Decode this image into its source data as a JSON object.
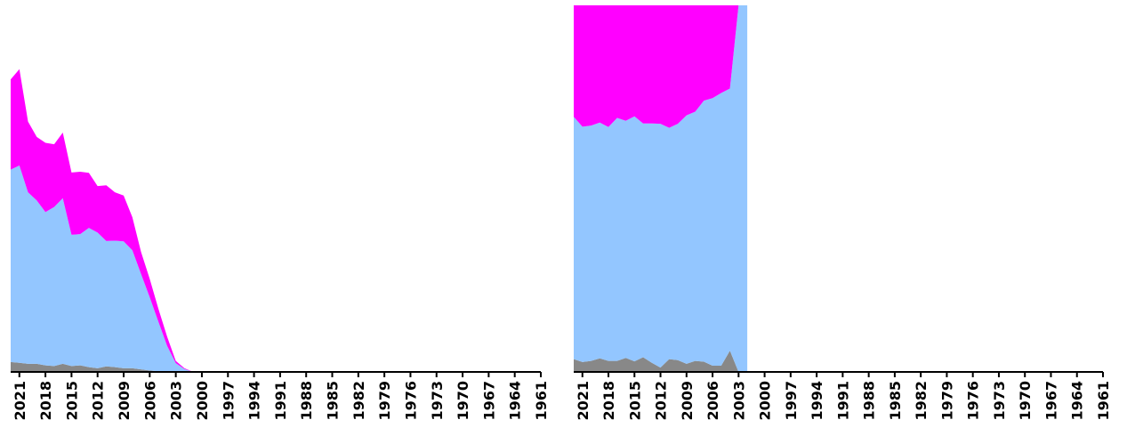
{
  "colors": {
    "grey": "#888888",
    "blue": "#93c6ff",
    "magenta": "#ff00ff",
    "axis": "#000000",
    "background": "#ffffff"
  },
  "chart_data": [
    {
      "type": "area",
      "stacked": true,
      "x_axis_reversed": true,
      "x_tick_labels": [
        "2021",
        "2018",
        "2015",
        "2012",
        "2009",
        "2006",
        "2003",
        "2000",
        "1997",
        "1994",
        "1991",
        "1988",
        "1985",
        "1982",
        "1979",
        "1976",
        "1973",
        "1970",
        "1967",
        "1964",
        "1961"
      ],
      "xlim": [
        2022,
        1961
      ],
      "ylim": [
        0,
        1.0
      ],
      "x": [
        2022,
        2021,
        2020,
        2019,
        2018,
        2017,
        2016,
        2015,
        2014,
        2013,
        2012,
        2011,
        2010,
        2009,
        2008,
        2007,
        2006,
        2005,
        2004,
        2003,
        2002,
        2001
      ],
      "series": [
        {
          "color": "#888888",
          "values": [
            0.027,
            0.025,
            0.022,
            0.022,
            0.018,
            0.016,
            0.022,
            0.016,
            0.018,
            0.013,
            0.01,
            0.015,
            0.013,
            0.01,
            0.01,
            0.007,
            0.004,
            0.002,
            0.001,
            0.0,
            0.0,
            0.0
          ]
        },
        {
          "color": "#93c6ff",
          "values": [
            0.525,
            0.538,
            0.468,
            0.446,
            0.418,
            0.434,
            0.452,
            0.358,
            0.358,
            0.38,
            0.37,
            0.342,
            0.345,
            0.346,
            0.322,
            0.26,
            0.2,
            0.135,
            0.07,
            0.024,
            0.008,
            0.0
          ]
        },
        {
          "color": "#ff00ff",
          "values": [
            0.246,
            0.263,
            0.193,
            0.173,
            0.189,
            0.171,
            0.179,
            0.17,
            0.17,
            0.15,
            0.127,
            0.152,
            0.132,
            0.125,
            0.09,
            0.06,
            0.05,
            0.035,
            0.025,
            0.006,
            0.002,
            0.0
          ]
        }
      ]
    },
    {
      "type": "area",
      "stacked": true,
      "x_axis_reversed": true,
      "x_tick_labels": [
        "2021",
        "2018",
        "2015",
        "2012",
        "2009",
        "2006",
        "2003",
        "2000",
        "1997",
        "1994",
        "1991",
        "1988",
        "1985",
        "1982",
        "1979",
        "1976",
        "1973",
        "1970",
        "1967",
        "1964",
        "1961"
      ],
      "xlim": [
        2022,
        1961
      ],
      "ylim": [
        0,
        1.0
      ],
      "x": [
        2022,
        2021,
        2020,
        2019,
        2018,
        2017,
        2016,
        2015,
        2014,
        2013,
        2012,
        2011,
        2010,
        2009,
        2008,
        2007,
        2006,
        2005,
        2004,
        2003,
        2002
      ],
      "series": [
        {
          "color": "#888888",
          "values": [
            0.035,
            0.027,
            0.03,
            0.037,
            0.03,
            0.03,
            0.038,
            0.029,
            0.04,
            0.025,
            0.012,
            0.035,
            0.032,
            0.022,
            0.03,
            0.028,
            0.017,
            0.017,
            0.058,
            0.0,
            0.0
          ]
        },
        {
          "color": "#93c6ff",
          "values": [
            0.661,
            0.642,
            0.642,
            0.643,
            0.638,
            0.663,
            0.647,
            0.668,
            0.638,
            0.653,
            0.665,
            0.631,
            0.645,
            0.678,
            0.68,
            0.712,
            0.73,
            0.744,
            0.715,
            1.0,
            1.0
          ]
        },
        {
          "color": "#ff00ff",
          "values": [
            0.304,
            0.331,
            0.328,
            0.32,
            0.332,
            0.307,
            0.315,
            0.303,
            0.322,
            0.322,
            0.323,
            0.334,
            0.323,
            0.3,
            0.29,
            0.26,
            0.253,
            0.239,
            0.227,
            0.0,
            0.0
          ]
        }
      ]
    }
  ]
}
